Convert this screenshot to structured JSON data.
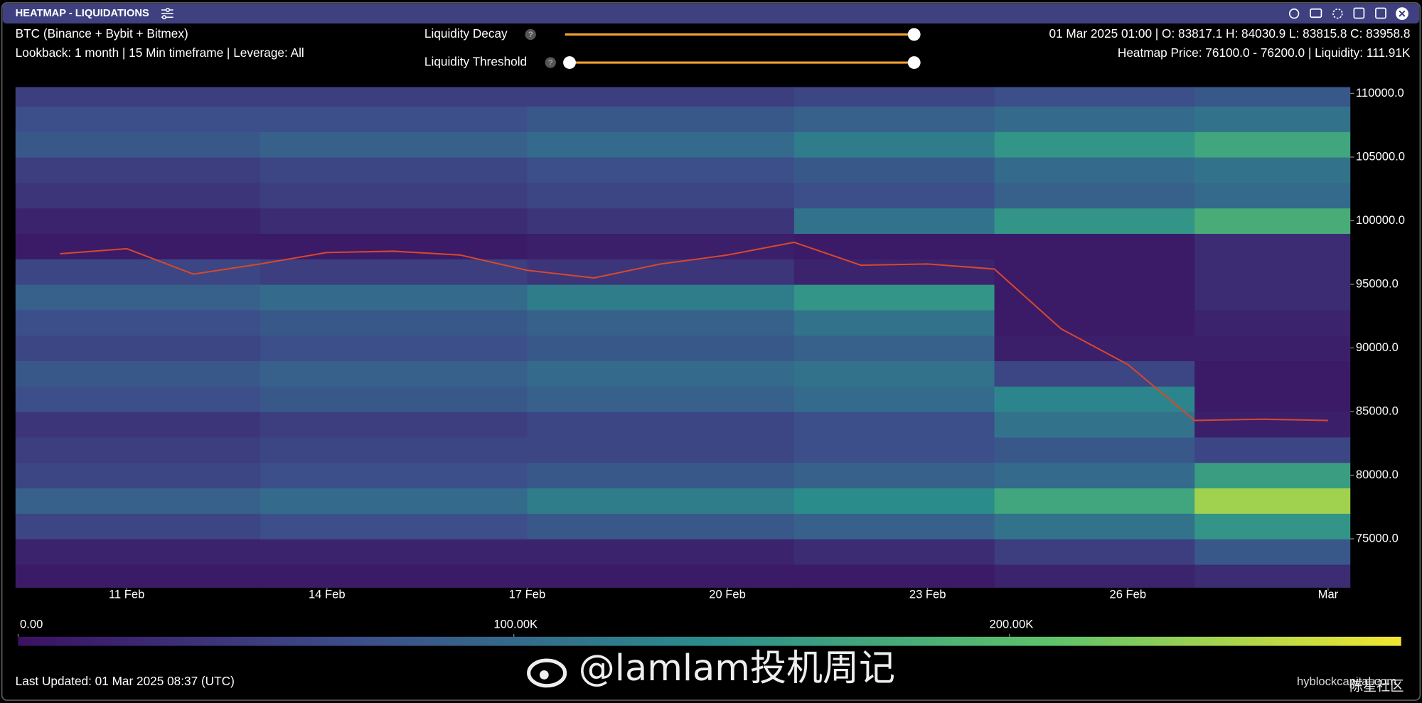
{
  "window": {
    "title": "HEATMAP - LIQUIDATIONS"
  },
  "info": {
    "exchanges": "BTC (Binance + Bybit + Bitmex)",
    "settings": "Lookback: 1 month | 15 Min timeframe | Leverage: All",
    "candle": "01 Mar 2025 01:00 | O: 83817.1 H: 84030.9 L: 83815.8 C: 83958.8",
    "hover": "Heatmap Price: 76100.0 - 76200.0 | Liquidity: 111.91K"
  },
  "controls": {
    "decay_label": "Liquidity Decay",
    "threshold_label": "Liquidity Threshold",
    "help": "?"
  },
  "footer": {
    "last_updated": "Last Updated: 01 Mar 2025 08:37 (UTC)",
    "source": "hyblockcapital.com",
    "watermark": "@lamlam投机周记",
    "watermark2": "陈星社区"
  },
  "chart_data": {
    "type": "heatmap",
    "xlim": [
      "2025-02-09T08:00Z",
      "2025-03-01T08:00Z"
    ],
    "xticks": [
      {
        "value": "2025-02-11",
        "label": "11 Feb"
      },
      {
        "value": "2025-02-14",
        "label": "14 Feb"
      },
      {
        "value": "2025-02-17",
        "label": "17 Feb"
      },
      {
        "value": "2025-02-20",
        "label": "20 Feb"
      },
      {
        "value": "2025-02-23",
        "label": "23 Feb"
      },
      {
        "value": "2025-02-26",
        "label": "26 Feb"
      },
      {
        "value": "2025-03-01",
        "label": "Mar"
      }
    ],
    "ylim": [
      71150,
      110500
    ],
    "yticks": [
      {
        "value": 110000,
        "label": "110000.0"
      },
      {
        "value": 105000,
        "label": "105000.0"
      },
      {
        "value": 100000,
        "label": "100000.0"
      },
      {
        "value": 95000,
        "label": "95000.0"
      },
      {
        "value": 90000,
        "label": "90000.0"
      },
      {
        "value": 85000,
        "label": "85000.0"
      },
      {
        "value": 80000,
        "label": "80000.0"
      },
      {
        "value": 75000,
        "label": "75000.0"
      }
    ],
    "x_bins": [
      "2025-02-09T08:00Z",
      "2025-02-13T00:00Z",
      "2025-02-17T00:00Z",
      "2025-02-21T00:00Z",
      "2025-02-24T00:00Z",
      "2025-02-27T00:00Z",
      "2025-03-01T08:00Z"
    ],
    "y_bins": [
      71000,
      73000,
      75000,
      77000,
      79000,
      81000,
      83000,
      85000,
      87000,
      89000,
      91000,
      93000,
      95000,
      97000,
      99000,
      101000,
      103000,
      105000,
      107000,
      109000,
      111000
    ],
    "z": [
      [
        10000,
        10000,
        10000,
        10000,
        20000,
        30000
      ],
      [
        20000,
        20000,
        20000,
        30000,
        50000,
        80000
      ],
      [
        60000,
        70000,
        80000,
        90000,
        110000,
        150000
      ],
      [
        90000,
        100000,
        120000,
        140000,
        170000,
        240000
      ],
      [
        60000,
        70000,
        80000,
        90000,
        100000,
        160000
      ],
      [
        50000,
        60000,
        60000,
        70000,
        80000,
        60000
      ],
      [
        40000,
        50000,
        60000,
        70000,
        110000,
        15000
      ],
      [
        70000,
        80000,
        90000,
        100000,
        130000,
        10000
      ],
      [
        80000,
        90000,
        100000,
        110000,
        60000,
        10000
      ],
      [
        60000,
        70000,
        80000,
        90000,
        15000,
        15000
      ],
      [
        70000,
        80000,
        90000,
        110000,
        10000,
        20000
      ],
      [
        90000,
        100000,
        120000,
        150000,
        10000,
        30000
      ],
      [
        60000,
        50000,
        40000,
        20000,
        10000,
        30000
      ],
      [
        10000,
        10000,
        15000,
        10000,
        10000,
        30000
      ],
      [
        20000,
        30000,
        40000,
        110000,
        150000,
        180000
      ],
      [
        40000,
        50000,
        60000,
        70000,
        90000,
        100000
      ],
      [
        50000,
        60000,
        70000,
        80000,
        100000,
        110000
      ],
      [
        80000,
        90000,
        100000,
        120000,
        150000,
        170000
      ],
      [
        70000,
        70000,
        80000,
        90000,
        100000,
        110000
      ],
      [
        50000,
        50000,
        50000,
        60000,
        70000,
        80000
      ]
    ],
    "zlim": [
      0,
      279000
    ],
    "colorscale": [
      "#3b1262",
      "#3c4f8a",
      "#2a8d8c",
      "#5fc36a",
      "#f2e630"
    ],
    "colorbar_ticks": [
      {
        "value": 0,
        "label": "0.00"
      },
      {
        "value": 100000,
        "label": "100.00K"
      },
      {
        "value": 200000,
        "label": "200.00K"
      }
    ],
    "series": [
      {
        "name": "BTC",
        "color": "#d9472b",
        "x": [
          "2025-02-10",
          "2025-02-11",
          "2025-02-12",
          "2025-02-13",
          "2025-02-14",
          "2025-02-15",
          "2025-02-16",
          "2025-02-17",
          "2025-02-18",
          "2025-02-19",
          "2025-02-20",
          "2025-02-21",
          "2025-02-22",
          "2025-02-23",
          "2025-02-24",
          "2025-02-25",
          "2025-02-26",
          "2025-02-27",
          "2025-02-28",
          "2025-03-01"
        ],
        "values": [
          97400,
          97800,
          95800,
          96600,
          97500,
          97600,
          97300,
          96100,
          95500,
          96600,
          97300,
          98300,
          96500,
          96600,
          96200,
          91500,
          88700,
          84300,
          84400,
          84300
        ]
      }
    ]
  }
}
